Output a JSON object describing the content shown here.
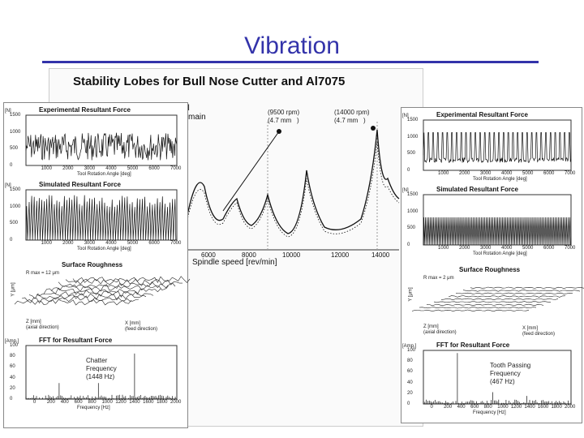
{
  "slide": {
    "title": "Vibration"
  },
  "main_figure": {
    "title": "Stability Lobes for Bull Nose Cutter and Al7075",
    "legend_fragment_1": "al",
    "legend_fragment_2": "main",
    "point_a": "(9500 rpm)\n(4.7 mm   )",
    "point_b": "(14000 rpm)\n(4.7 mm   )",
    "x_axis_label": "Spindle speed [rev/min]",
    "x_ticks": [
      "6000",
      "8000",
      "10000",
      "12000",
      "14000"
    ]
  },
  "left_column": {
    "exp_force": {
      "title": "Experimental Resultant Force",
      "unit": "[N]",
      "y_ticks": [
        "1500",
        "1000",
        "500",
        "0"
      ],
      "x_ticks": [
        "1000",
        "2000",
        "3000",
        "4000",
        "5000",
        "6000",
        "7000"
      ],
      "x_label": "Tool Rotation Angle [deg]"
    },
    "sim_force": {
      "title": "Simulated Resultant Force",
      "unit": "[N]",
      "y_ticks": [
        "1500",
        "1000",
        "500",
        "0"
      ],
      "x_ticks": [
        "1000",
        "2000",
        "3000",
        "4000",
        "5000",
        "6000",
        "7000"
      ],
      "x_label": "Tool Rotation Angle [deg]"
    },
    "roughness": {
      "title": "Surface Roughness",
      "rmax": "R max = 12 μm",
      "z_label": "Z [mm]\n(axial direction)",
      "x_label": "X [mm]\n(feed direction)",
      "y_label": "Y [μm]"
    },
    "fft": {
      "title": "FFT for Resultant Force",
      "unit": "[Amp.]",
      "note": "Chatter\nFrequency\n(1448 Hz)",
      "y_ticks": [
        "100",
        "80",
        "60",
        "40",
        "20",
        "0"
      ],
      "x_ticks": [
        "0",
        "200",
        "400",
        "600",
        "800",
        "1000",
        "1200",
        "1400",
        "1600",
        "1800",
        "2000"
      ],
      "x_label": "Frequency [Hz]"
    }
  },
  "right_column": {
    "exp_force": {
      "title": "Experimental Resultant Force",
      "unit": "[N]",
      "y_ticks": [
        "1500",
        "1000",
        "500",
        "0"
      ],
      "x_ticks": [
        "1000",
        "2000",
        "3000",
        "4000",
        "5000",
        "6000",
        "7000"
      ],
      "x_label": "Tool Rotation Angle [deg]"
    },
    "sim_force": {
      "title": "Simulated Resultant Force",
      "unit": "[N]",
      "y_ticks": [
        "1500",
        "1000",
        "500",
        "0"
      ],
      "x_ticks": [
        "1000",
        "2000",
        "3000",
        "4000",
        "5000",
        "6000",
        "7000"
      ],
      "x_label": "Tool Rotation Angle [deg]"
    },
    "roughness": {
      "title": "Surface Roughness",
      "rmax": "R max = 2 μm",
      "z_label": "Z [mm]\n(axial direction)",
      "x_label": "X [mm]\n(feed direction)",
      "y_label": "Y [μm]"
    },
    "fft": {
      "title": "FFT for Resultant Force",
      "unit": "[Amp.]",
      "note": "Tooth Passing\nFrequency\n(467 Hz)",
      "y_ticks": [
        "100",
        "80",
        "60",
        "40",
        "20",
        "0"
      ],
      "x_ticks": [
        "0",
        "200",
        "400",
        "600",
        "800",
        "1000",
        "1200",
        "1400",
        "1600",
        "1800",
        "2000"
      ],
      "x_label": "Frequency [Hz]"
    }
  },
  "colors": {
    "title": "#3333aa",
    "plot_line": "#111111"
  }
}
